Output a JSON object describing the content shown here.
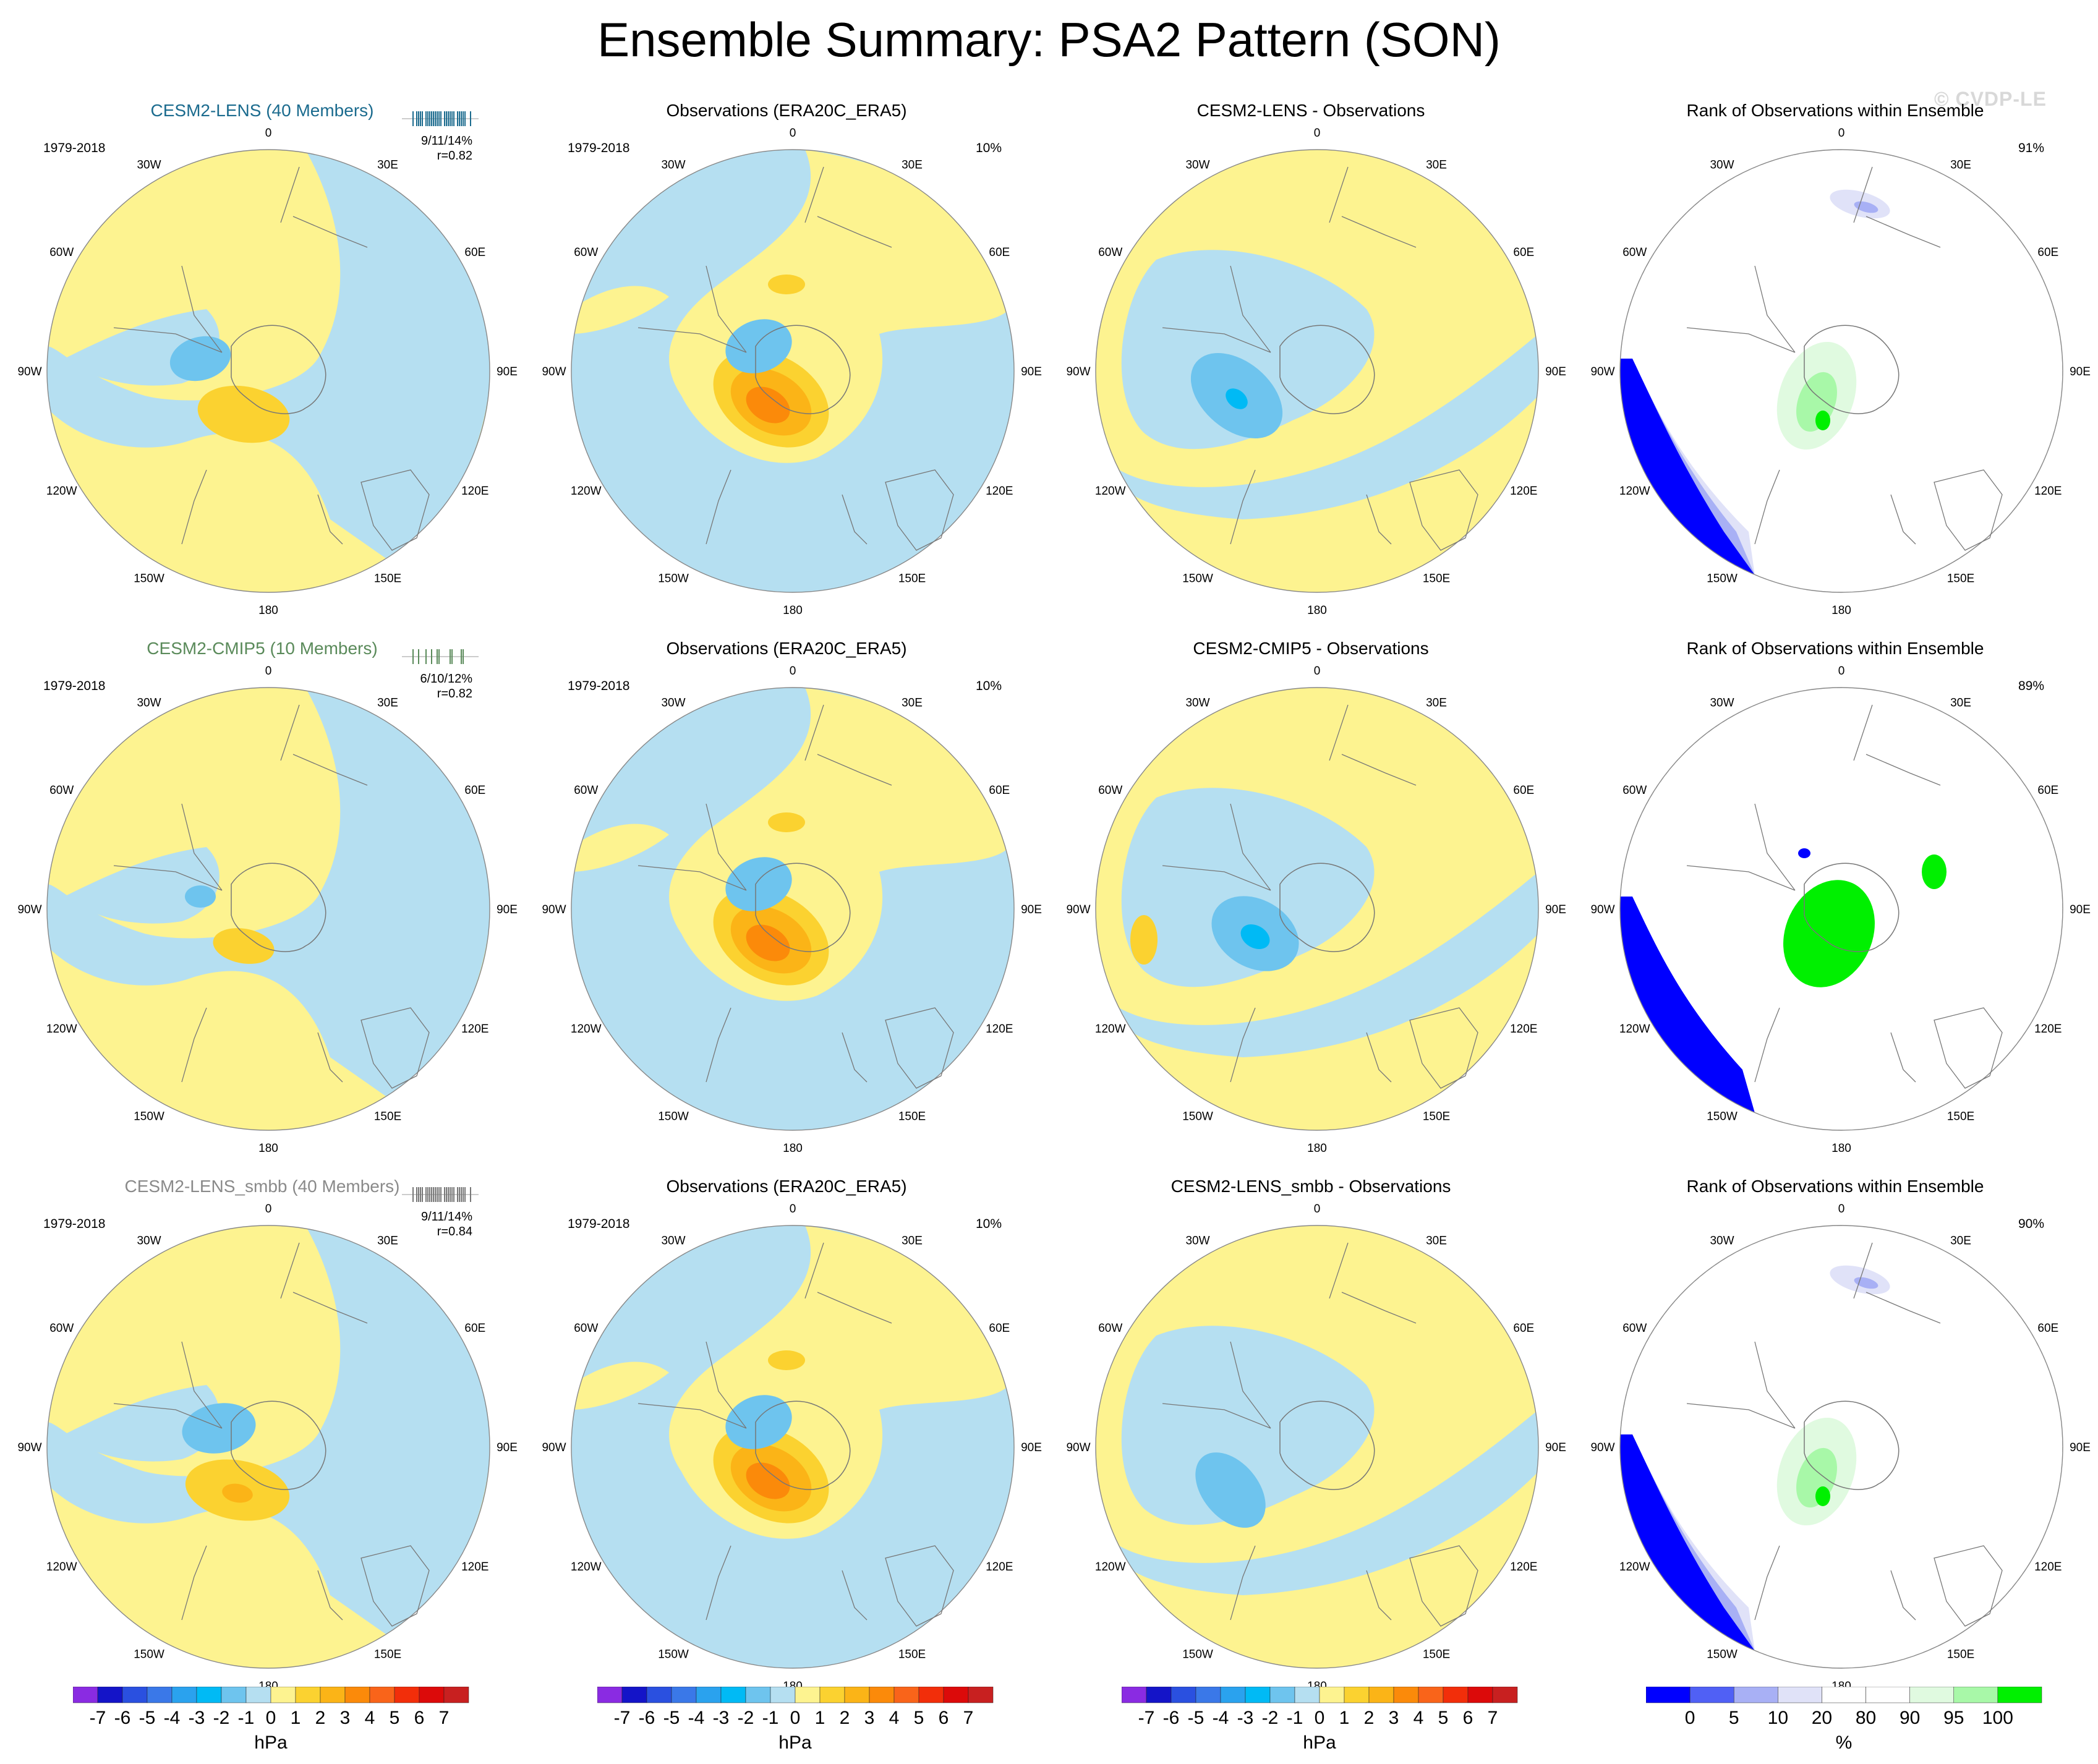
{
  "title": "Ensemble Summary: PSA2 Pattern (SON)",
  "watermark": "© CVDP-LE",
  "lon_labels": [
    "0",
    "30E",
    "60E",
    "90E",
    "120E",
    "150E",
    "180",
    "150W",
    "120W",
    "90W",
    "60W",
    "30W"
  ],
  "colors": {
    "neg7": "#8a2be2",
    "neg6": "#1414c8",
    "neg5": "#2a50e0",
    "neg4": "#3a78e8",
    "neg3": "#2aa2ee",
    "neg2": "#00baf5",
    "neg1": "#6ec4ee",
    "neg0": "#b5dff1",
    "pos0": "#fdf390",
    "pos1": "#fbd230",
    "pos2": "#fbb417",
    "pos3": "#fb8a0a",
    "pos4": "#f9641a",
    "pos5": "#f22e0a",
    "pos6": "#dc0a0a",
    "pos7": "#c82020",
    "pos8": "#fbb0b0",
    "r0": "#0000ff",
    "r5": "#5060f5",
    "r10": "#a8b0f5",
    "r20": "#e0e2f8",
    "r80": "#ffffff",
    "r90": "#e0fae0",
    "r95": "#a8f8a8",
    "r100": "#00f000"
  },
  "rows": [
    {
      "model": {
        "title": "CESM2-LENS (40 Members)",
        "period": "1979-2018",
        "stat_a": "9/11/14%",
        "stat_b": "r=0.82"
      },
      "obs": {
        "title": "Observations (ERA20C_ERA5)",
        "period": "1979-2018",
        "pct": "10%"
      },
      "diff": {
        "title": "CESM2-LENS - Observations"
      },
      "rank": {
        "title": "Rank of Observations within Ensemble",
        "pct": "91%"
      }
    },
    {
      "model": {
        "title": "CESM2-CMIP5 (10 Members)",
        "period": "1979-2018",
        "stat_a": "6/10/12%",
        "stat_b": "r=0.82"
      },
      "obs": {
        "title": "Observations (ERA20C_ERA5)",
        "period": "1979-2018",
        "pct": "10%"
      },
      "diff": {
        "title": "CESM2-CMIP5 - Observations"
      },
      "rank": {
        "title": "Rank of Observations within Ensemble",
        "pct": "89%"
      }
    },
    {
      "model": {
        "title": "CESM2-LENS_smbb (40 Members)",
        "period": "1979-2018",
        "stat_a": "9/11/14%",
        "stat_b": "r=0.84"
      },
      "obs": {
        "title": "Observations (ERA20C_ERA5)",
        "period": "1979-2018",
        "pct": "10%"
      },
      "diff": {
        "title": "CESM2-LENS_smbb - Observations"
      },
      "rank": {
        "title": "Rank of Observations within Ensemble",
        "pct": "90%"
      }
    }
  ],
  "colorbar_hpa": {
    "ticks": [
      "-7",
      "-6",
      "-5",
      "-4",
      "-3",
      "-2",
      "-1",
      "0",
      "1",
      "2",
      "3",
      "4",
      "5",
      "6",
      "7"
    ],
    "unit": "hPa"
  },
  "colorbar_rank": {
    "ticks": [
      "0",
      "5",
      "10",
      "20",
      "80",
      "90",
      "95",
      "100"
    ],
    "unit": "%"
  }
}
